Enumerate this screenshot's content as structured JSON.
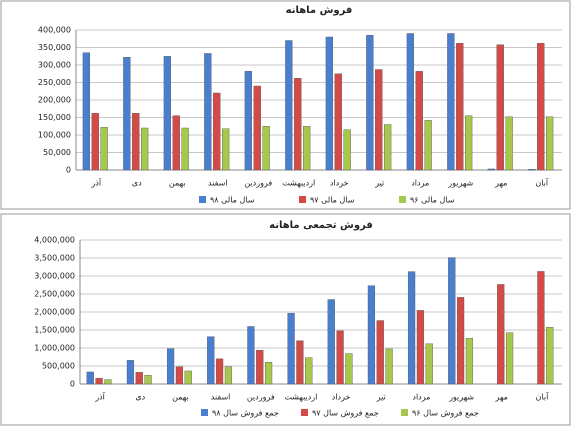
{
  "chart_data": [
    {
      "type": "bar",
      "title": "فروش ماهانه",
      "categories": [
        "آذر",
        "دی",
        "بهمن",
        "اسفند",
        "فروردین",
        "اردیبهشت",
        "خرداد",
        "تیر",
        "مرداد",
        "شهریور",
        "مهر",
        "آبان"
      ],
      "series": [
        {
          "name": "سال مالی ۹۸",
          "color": "#4a7fd0",
          "values": [
            335000,
            322000,
            325000,
            333000,
            282000,
            370000,
            380000,
            385000,
            390000,
            390000,
            3000,
            2000
          ]
        },
        {
          "name": "سال مالی ۹۷",
          "color": "#d44a48",
          "values": [
            162000,
            162000,
            155000,
            220000,
            240000,
            262000,
            275000,
            287000,
            282000,
            362000,
            358000,
            362000
          ]
        },
        {
          "name": "سال مالی ۹۶",
          "color": "#a6c84c",
          "values": [
            122000,
            120000,
            120000,
            118000,
            125000,
            125000,
            115000,
            130000,
            142000,
            155000,
            152000,
            152000
          ]
        }
      ],
      "ylim": [
        0,
        400000
      ],
      "yticks": [
        0,
        {
          "value": 50000,
          "label": "50,000"
        },
        {
          "value": 100000,
          "label": "100,000"
        },
        {
          "value": 150000,
          "label": "150,000"
        },
        {
          "value": 200000,
          "label": "200,000"
        },
        {
          "value": 250000,
          "label": "250,000"
        },
        {
          "value": 300000,
          "label": "300,000"
        },
        {
          "value": 350000,
          "label": "350,000"
        },
        {
          "value": 400000,
          "label": "400,000"
        }
      ],
      "grid": true,
      "legend": "bottom"
    },
    {
      "type": "bar",
      "title": "فروش تجمعی ماهانه",
      "categories": [
        "آذر",
        "دی",
        "بهمن",
        "اسفند",
        "فروردین",
        "اردیبهشت",
        "خرداد",
        "تیر",
        "مرداد",
        "شهریور",
        "مهر",
        "آبان"
      ],
      "series": [
        {
          "name": "جمع فروش سال ۹۸",
          "color": "#4a7fd0",
          "values": [
            335000,
            657000,
            982000,
            1315000,
            1597000,
            1967000,
            2347000,
            2732000,
            3122000,
            3512000,
            null,
            null
          ]
        },
        {
          "name": "جمع فروش سال ۹۷",
          "color": "#d44a48",
          "values": [
            162000,
            324000,
            479000,
            699000,
            939000,
            1201000,
            1476000,
            1763000,
            2045000,
            2407000,
            2765000,
            3127000
          ]
        },
        {
          "name": "جمع فروش سال ۹۶",
          "color": "#a6c84c",
          "values": [
            122000,
            242000,
            362000,
            480000,
            605000,
            730000,
            845000,
            975000,
            1117000,
            1272000,
            1424000,
            1576000
          ]
        }
      ],
      "ylim": [
        0,
        4000000
      ],
      "yticks": [
        0,
        {
          "value": 500000,
          "label": "500,000"
        },
        {
          "value": 1000000,
          "label": "1,000,000"
        },
        {
          "value": 1500000,
          "label": "1,500,000"
        },
        {
          "value": 2000000,
          "label": "2,000,000"
        },
        {
          "value": 2500000,
          "label": "2,500,000"
        },
        {
          "value": 3000000,
          "label": "3,000,000"
        },
        {
          "value": 3500000,
          "label": "3,500,000"
        },
        {
          "value": 4000000,
          "label": "4,000,000"
        }
      ],
      "grid": true,
      "legend": "bottom"
    }
  ]
}
